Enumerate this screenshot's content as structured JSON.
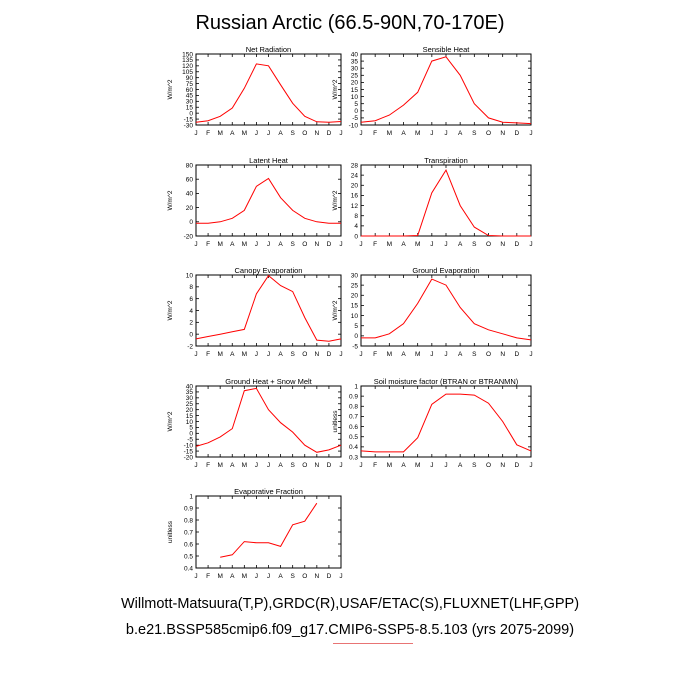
{
  "title": "Russian Arctic (66.5-90N,70-170E)",
  "footer_line1": "Willmott-Matsuura(T,P),GRDC(R),USAF/ETAC(S),FLUXNET(LHF,GPP)",
  "footer_line2": "b.e21.BSSP585cmip6.f09_g17.CMIP6-SSP5-8.5.103 (yrs 2075-2099)",
  "colors": {
    "line": "#ff0000",
    "axis": "#000000"
  },
  "chart_data": [
    {
      "type": "line",
      "title": "Net Radiation",
      "ylabel": "W/m^2",
      "ylim": [
        -30,
        150
      ],
      "yticks": [
        -30,
        -15,
        0,
        15,
        30,
        45,
        60,
        75,
        90,
        105,
        120,
        135,
        150
      ],
      "categories": [
        "J",
        "F",
        "M",
        "A",
        "M",
        "J",
        "J",
        "A",
        "S",
        "O",
        "N",
        "D",
        "J"
      ],
      "values": [
        -23,
        -19,
        -8,
        13,
        63,
        125,
        120,
        72,
        25,
        -8,
        -22,
        -23,
        -21
      ]
    },
    {
      "type": "line",
      "title": "Sensible Heat",
      "ylabel": "W/m^2",
      "ylim": [
        -10,
        40
      ],
      "yticks": [
        -10,
        -5,
        0,
        5,
        10,
        15,
        20,
        25,
        30,
        35,
        40
      ],
      "categories": [
        "J",
        "F",
        "M",
        "A",
        "M",
        "J",
        "J",
        "A",
        "S",
        "O",
        "N",
        "D",
        "J"
      ],
      "values": [
        -8,
        -7,
        -3,
        4,
        13,
        35,
        38,
        25,
        5,
        -5,
        -8,
        -8.5,
        -9
      ]
    },
    {
      "type": "line",
      "title": "Latent Heat",
      "ylabel": "W/m^2",
      "ylim": [
        -20,
        80
      ],
      "yticks": [
        -20,
        0,
        20,
        40,
        60,
        80
      ],
      "categories": [
        "J",
        "F",
        "M",
        "A",
        "M",
        "J",
        "J",
        "A",
        "S",
        "O",
        "N",
        "D",
        "J"
      ],
      "values": [
        -2,
        -2,
        0,
        5,
        16,
        50,
        61,
        34,
        16,
        5,
        0,
        -2,
        -2
      ]
    },
    {
      "type": "line",
      "title": "Transpiration",
      "ylabel": "W/m^2",
      "ylim": [
        0,
        28
      ],
      "yticks": [
        0,
        4,
        8,
        12,
        16,
        20,
        24,
        28
      ],
      "categories": [
        "J",
        "F",
        "M",
        "A",
        "M",
        "J",
        "J",
        "A",
        "S",
        "O",
        "N",
        "D",
        "J"
      ],
      "values": [
        0,
        0,
        0,
        0,
        0.2,
        17,
        26,
        12,
        3.5,
        0.2,
        0,
        0,
        0
      ]
    },
    {
      "type": "line",
      "title": "Canopy Evaporation",
      "ylabel": "W/m^2",
      "ylim": [
        -2,
        10
      ],
      "yticks": [
        -2,
        0,
        2,
        4,
        6,
        8,
        10
      ],
      "categories": [
        "J",
        "F",
        "M",
        "A",
        "M",
        "J",
        "J",
        "A",
        "S",
        "O",
        "N",
        "D",
        "J"
      ],
      "values": [
        -0.8,
        -0.4,
        0,
        0.4,
        0.8,
        6.8,
        9.9,
        8.2,
        7.2,
        2.8,
        -1,
        -1.2,
        -0.8
      ]
    },
    {
      "type": "line",
      "title": "Ground Evaporation",
      "ylabel": "W/m^2",
      "ylim": [
        -5,
        30
      ],
      "yticks": [
        -5,
        0,
        5,
        10,
        15,
        20,
        25,
        30
      ],
      "categories": [
        "J",
        "F",
        "M",
        "A",
        "M",
        "J",
        "J",
        "A",
        "S",
        "O",
        "N",
        "D",
        "J"
      ],
      "values": [
        -1,
        -1,
        1,
        6,
        16,
        28,
        25,
        14,
        6,
        3,
        1,
        -1,
        -2
      ]
    },
    {
      "type": "line",
      "title": "Ground Heat + Snow Melt",
      "ylabel": "W/m^2",
      "ylim": [
        -20,
        40
      ],
      "yticks": [
        -20,
        -15,
        -10,
        -5,
        0,
        5,
        10,
        15,
        20,
        25,
        30,
        35,
        40
      ],
      "categories": [
        "J",
        "F",
        "M",
        "A",
        "M",
        "J",
        "J",
        "A",
        "S",
        "O",
        "N",
        "D",
        "J"
      ],
      "values": [
        -11,
        -8,
        -3,
        4,
        36,
        38,
        20,
        9,
        1,
        -10,
        -16,
        -14,
        -10
      ]
    },
    {
      "type": "line",
      "title": "Soil moisture factor (BTRAN or BTRANMN)",
      "ylabel": "unitless",
      "ylim": [
        0.3,
        1.0
      ],
      "yticks": [
        0.3,
        0.4,
        0.5,
        0.6,
        0.7,
        0.8,
        0.9,
        1.0
      ],
      "categories": [
        "J",
        "F",
        "M",
        "A",
        "M",
        "J",
        "J",
        "A",
        "S",
        "O",
        "N",
        "D",
        "J"
      ],
      "values": [
        0.36,
        0.35,
        0.35,
        0.35,
        0.49,
        0.82,
        0.92,
        0.92,
        0.91,
        0.83,
        0.65,
        0.42,
        0.36
      ]
    },
    {
      "type": "line",
      "title": "Evaporative Fraction",
      "ylabel": "unitless",
      "ylim": [
        0.4,
        1.0
      ],
      "yticks": [
        0.4,
        0.5,
        0.6,
        0.7,
        0.8,
        0.9,
        1.0
      ],
      "categories": [
        "J",
        "F",
        "M",
        "A",
        "M",
        "J",
        "J",
        "A",
        "S",
        "O",
        "N",
        "D",
        "J"
      ],
      "values": [
        null,
        null,
        0.49,
        0.51,
        0.62,
        0.61,
        0.61,
        0.58,
        0.76,
        0.79,
        0.94,
        null,
        null
      ]
    }
  ]
}
